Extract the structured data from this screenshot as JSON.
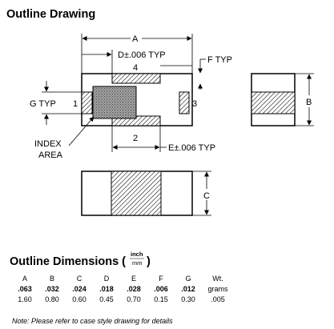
{
  "title": "Outline Drawing",
  "drawing": {
    "label_A": "A",
    "label_B": "B",
    "label_C": "C",
    "label_D": "D±.006 TYP",
    "label_E": "E±.006 TYP",
    "label_F": "F TYP",
    "label_G": "G TYP",
    "pad_1": "1",
    "pad_2": "2",
    "pad_3": "3",
    "pad_4": "4",
    "index_line1": "INDEX",
    "index_line2": "AREA"
  },
  "dimensions": {
    "title": "Outline Dimensions (",
    "title_close": ")",
    "unit_top": "inch",
    "unit_bottom": "mm",
    "headers": [
      "A",
      "B",
      "C",
      "D",
      "E",
      "F",
      "G",
      "Wt."
    ],
    "inch": [
      ".063",
      ".032",
      ".024",
      ".018",
      ".028",
      ".006",
      ".012",
      "grams"
    ],
    "mm": [
      "1.60",
      "0.80",
      "0.60",
      "0.45",
      "0.70",
      "0.15",
      "0.30",
      ".005"
    ]
  },
  "note": "Note: Please refer to case style drawing for details"
}
